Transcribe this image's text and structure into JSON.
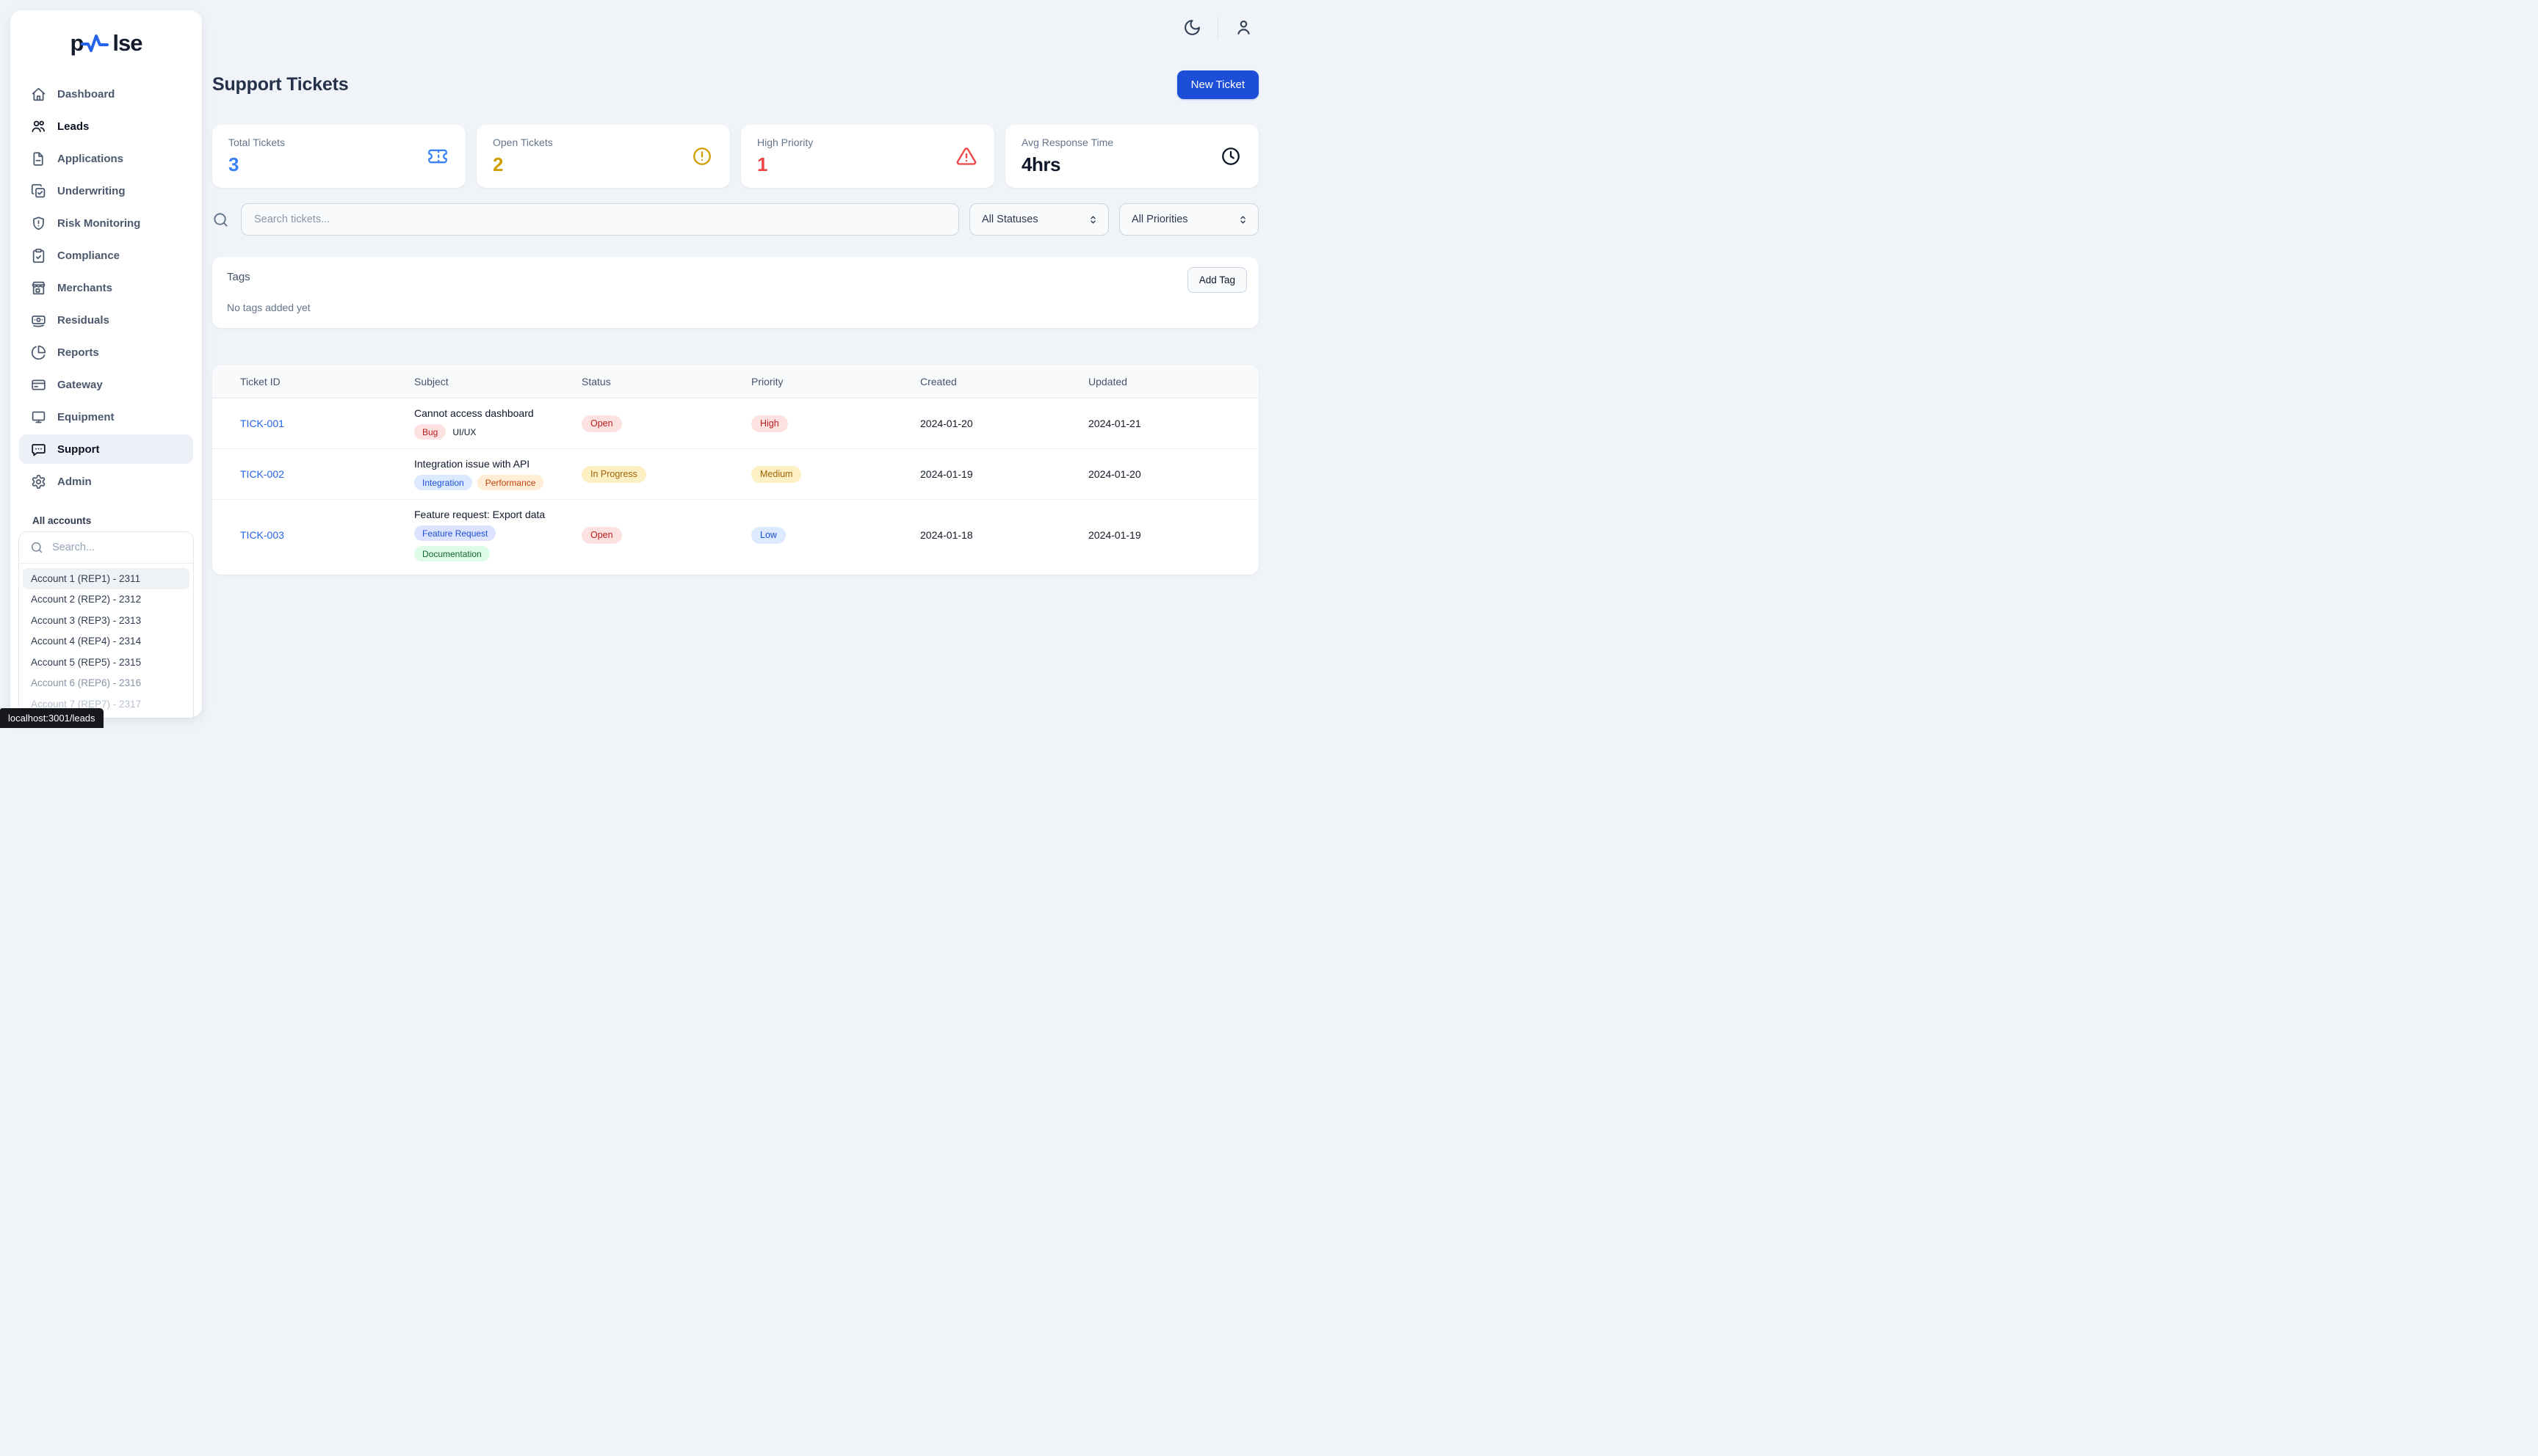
{
  "logo": {
    "text_before": "p",
    "text_after": "lse",
    "wave_color": "#2563eb"
  },
  "page": {
    "title": "Support Tickets",
    "new_ticket_label": "New Ticket"
  },
  "topbar": {
    "icons": [
      "moon-icon",
      "user-icon"
    ]
  },
  "stats": [
    {
      "label": "Total Tickets",
      "value": "3",
      "color": "#3b82f6",
      "icon": "ticket-icon"
    },
    {
      "label": "Open Tickets",
      "value": "2",
      "color": "#d19e06",
      "icon": "alert-circle-icon"
    },
    {
      "label": "High Priority",
      "value": "1",
      "color": "#ef4444",
      "icon": "alert-triangle-icon"
    },
    {
      "label": "Avg Response Time",
      "value": "4hrs",
      "color": "#0f172a",
      "icon": "clock-icon"
    }
  ],
  "filters": {
    "search_placeholder": "Search tickets...",
    "status_value": "All Statuses",
    "priority_value": "All Priorities"
  },
  "tags_section": {
    "title": "Tags",
    "add_button": "Add Tag",
    "empty_text": "No tags added yet"
  },
  "table": {
    "headers": [
      "Ticket ID",
      "Subject",
      "Status",
      "Priority",
      "Created",
      "Updated"
    ],
    "rows": [
      {
        "id": "TICK-001",
        "subject": "Cannot access dashboard",
        "tags": [
          "Bug",
          "UI/UX"
        ],
        "status": "Open",
        "priority": "High",
        "created": "2024-01-20",
        "updated": "2024-01-21"
      },
      {
        "id": "TICK-002",
        "subject": "Integration issue with API",
        "tags": [
          "Integration",
          "Performance"
        ],
        "status": "In Progress",
        "priority": "Medium",
        "created": "2024-01-19",
        "updated": "2024-01-20"
      },
      {
        "id": "TICK-003",
        "subject": "Feature request: Export data",
        "tags": [
          "Feature Request",
          "Documentation"
        ],
        "status": "Open",
        "priority": "Low",
        "created": "2024-01-18",
        "updated": "2024-01-19"
      }
    ]
  },
  "badge_colors": {
    "Bug": {
      "bg": "#fee2e2",
      "text": "#b91c1c"
    },
    "UI/UX": {
      "bg": "transparent",
      "text": "#0f172a"
    },
    "Integration": {
      "bg": "#dbeafe",
      "text": "#1d4ed8"
    },
    "Performance": {
      "bg": "#ffedd5",
      "text": "#c2410c"
    },
    "Feature Request": {
      "bg": "#dbe3fe",
      "text": "#1d4ed8"
    },
    "Documentation": {
      "bg": "#dcfce7",
      "text": "#166534"
    },
    "Open": {
      "bg": "#fee2e2",
      "text": "#b91c1c"
    },
    "In Progress": {
      "bg": "#fdf0c4",
      "text": "#a16207"
    },
    "High": {
      "bg": "#fee2e2",
      "text": "#b91c1c"
    },
    "Medium": {
      "bg": "#fdf0c4",
      "text": "#a16207"
    },
    "Low": {
      "bg": "#dbeafe",
      "text": "#1d4ed8"
    }
  },
  "sidebar": {
    "items": [
      {
        "label": "Dashboard",
        "icon": "home-icon"
      },
      {
        "label": "Leads",
        "icon": "users-icon",
        "emphasized": true
      },
      {
        "label": "Applications",
        "icon": "file-icon"
      },
      {
        "label": "Underwriting",
        "icon": "copy-check-icon"
      },
      {
        "label": "Risk Monitoring",
        "icon": "shield-alert-icon"
      },
      {
        "label": "Compliance",
        "icon": "clipboard-check-icon"
      },
      {
        "label": "Merchants",
        "icon": "store-icon"
      },
      {
        "label": "Residuals",
        "icon": "banknote-icon"
      },
      {
        "label": "Reports",
        "icon": "pie-chart-icon"
      },
      {
        "label": "Gateway",
        "icon": "credit-card-icon"
      },
      {
        "label": "Equipment",
        "icon": "monitor-icon"
      },
      {
        "label": "Support",
        "icon": "message-dots-icon",
        "active": true
      },
      {
        "label": "Admin",
        "icon": "gear-icon"
      }
    ],
    "accounts_label": "All accounts",
    "account_search_placeholder": "Search...",
    "accounts": [
      {
        "label": "Account 1 (REP1) - 2311",
        "selected": true
      },
      {
        "label": "Account 2 (REP2) - 2312"
      },
      {
        "label": "Account 3 (REP3) - 2313"
      },
      {
        "label": "Account 4 (REP4) - 2314"
      },
      {
        "label": "Account 5 (REP5) - 2315"
      },
      {
        "label": "Account 6 (REP6) - 2316",
        "faded": true
      },
      {
        "label": "Account 7 (REP7) - 2317",
        "faded2": true
      }
    ]
  },
  "statusbar": {
    "url": "localhost:3001/leads"
  }
}
